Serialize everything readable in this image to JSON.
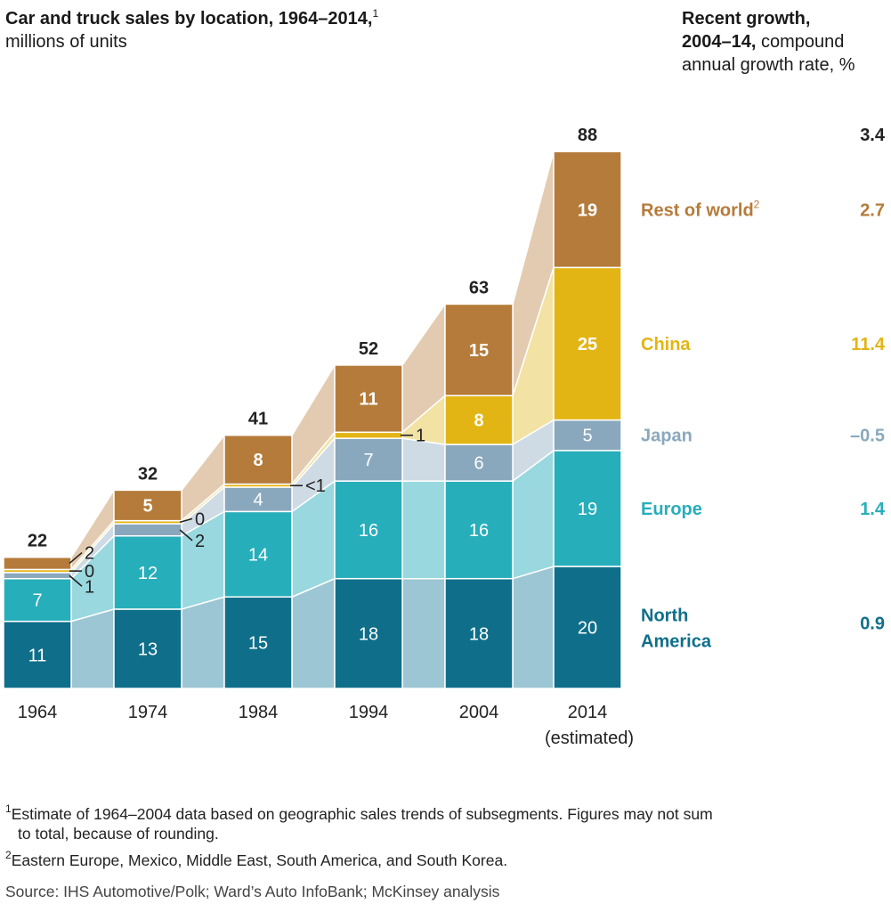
{
  "title": {
    "main": "Car and truck sales by location, 1964–2014,",
    "main_sup": "1",
    "sub": "millions of units"
  },
  "growth_header": {
    "line1": "Recent growth,",
    "line2_bold": "2004–14,",
    "line2_rest": "compound",
    "line3": "annual growth rate, %"
  },
  "colors": {
    "north_america": "#0f6f8a",
    "europe": "#27aebb",
    "japan": "#8aa8bd",
    "china": "#e3b514",
    "rest_of_world": "#b57b3a",
    "north_america_band": "#9cc6d3",
    "europe_band": "#99d8df",
    "japan_band": "#cfdbe4",
    "china_band": "#f2e2a3",
    "rest_of_world_band": "#e3cbb1"
  },
  "chart_data": {
    "type": "bar",
    "stacked": true,
    "categories": [
      "1964",
      "1974",
      "1984",
      "1994",
      "2004",
      "2014"
    ],
    "category_sublabels": [
      "",
      "",
      "",
      "",
      "",
      "(estimated)"
    ],
    "series": [
      {
        "name": "North America",
        "values": [
          11,
          13,
          15,
          18,
          18,
          20
        ],
        "labels": [
          "11",
          "13",
          "15",
          "18",
          "18",
          "20"
        ],
        "growth": "0.9",
        "color": "#0f6f8a"
      },
      {
        "name": "Europe",
        "values": [
          7,
          12,
          14,
          16,
          16,
          19
        ],
        "labels": [
          "7",
          "12",
          "14",
          "16",
          "16",
          "19"
        ],
        "growth": "1.4",
        "color": "#27aebb"
      },
      {
        "name": "Japan",
        "values": [
          1,
          2,
          4,
          7,
          6,
          5
        ],
        "labels": [
          "1",
          "2",
          "4",
          "7",
          "6",
          "5"
        ],
        "growth": "–0.5",
        "color": "#8aa8bd"
      },
      {
        "name": "China",
        "values": [
          0,
          0,
          0.5,
          1,
          8,
          25
        ],
        "labels": [
          "0",
          "0",
          "<1",
          "1",
          "8",
          "25"
        ],
        "growth": "11.4",
        "color": "#e3b514"
      },
      {
        "name": "Rest of world",
        "name_sup": "2",
        "values": [
          2,
          5,
          8,
          11,
          15,
          19
        ],
        "labels": [
          "2",
          "5",
          "8",
          "11",
          "15",
          "19"
        ],
        "growth": "2.7",
        "color": "#b57b3a"
      }
    ],
    "totals": [
      22,
      32,
      41,
      52,
      63,
      88
    ],
    "total_growth": "3.4",
    "legend_labels": [
      "Rest of world",
      "China",
      "Japan",
      "Europe",
      "North\nAmerica"
    ],
    "ylim": [
      0,
      90
    ]
  },
  "footnotes": {
    "note1_marker": "1",
    "note1_line1": "Estimate of 1964–2004 data based on geographic sales trends of subsegments. Figures may not sum",
    "note1_line2": "to total, because of rounding.",
    "note2_marker": "2",
    "note2": "Eastern Europe, Mexico, Middle East, South America, and South Korea.",
    "source": "Source: IHS Automotive/Polk; Ward’s Auto InfoBank; McKinsey analysis"
  }
}
